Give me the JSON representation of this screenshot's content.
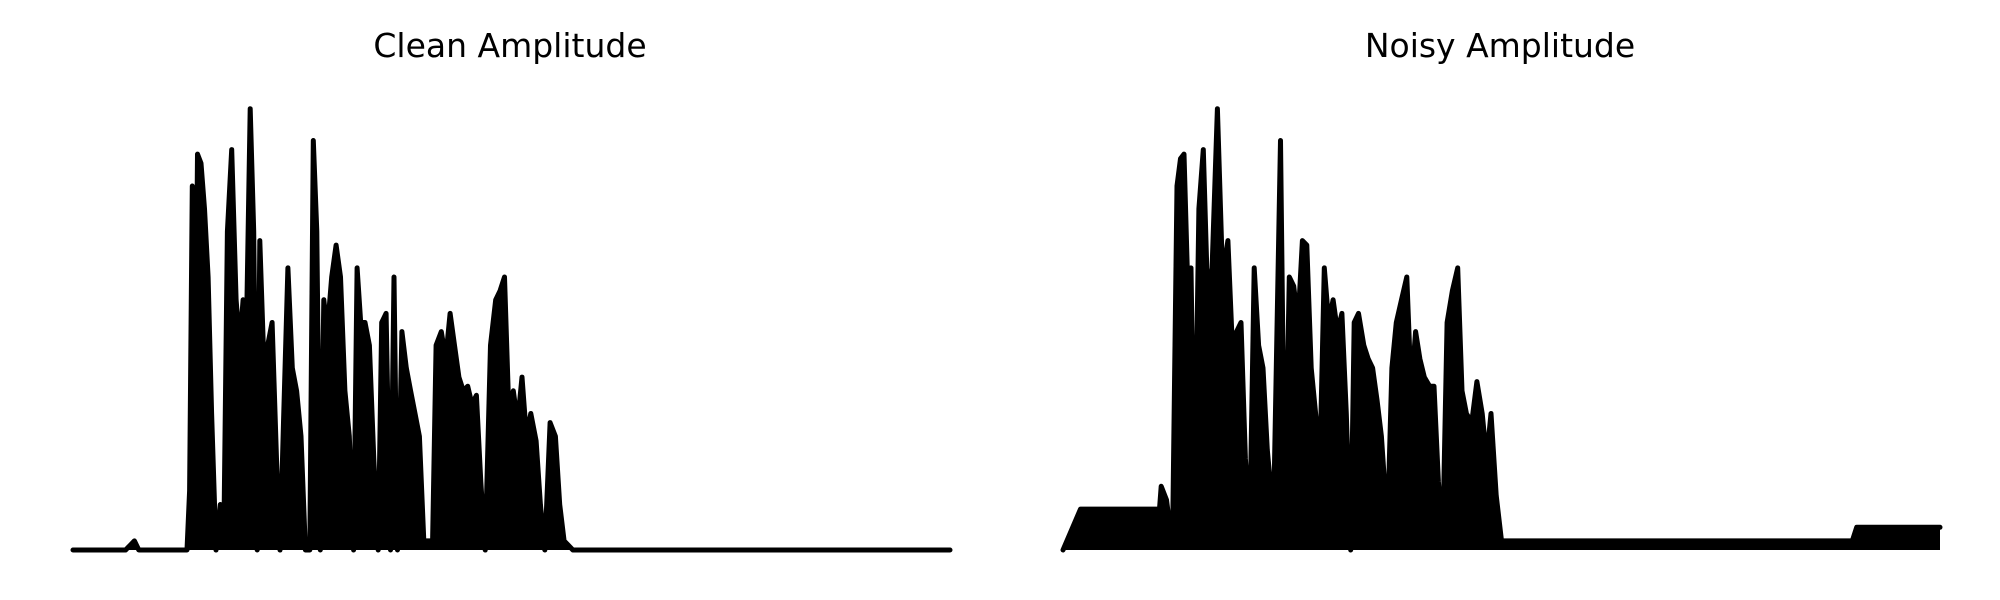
{
  "chart_data": [
    {
      "type": "line",
      "title": "Clean Amplitude",
      "axes_visible": false,
      "grid": false,
      "color": "#000000",
      "xlim": [
        0,
        1
      ],
      "ylim": [
        0,
        1
      ],
      "envelope": [
        [
          0.0,
          0.0
        ],
        [
          0.06,
          0.0
        ],
        [
          0.07,
          0.02
        ],
        [
          0.075,
          0.0
        ],
        [
          0.13,
          0.0
        ],
        [
          0.133,
          0.13
        ],
        [
          0.136,
          0.8
        ],
        [
          0.139,
          0.2
        ],
        [
          0.142,
          0.87
        ],
        [
          0.146,
          0.85
        ],
        [
          0.15,
          0.75
        ],
        [
          0.154,
          0.6
        ],
        [
          0.158,
          0.3
        ],
        [
          0.163,
          0.0
        ],
        [
          0.168,
          0.1
        ],
        [
          0.172,
          0.02
        ],
        [
          0.176,
          0.7
        ],
        [
          0.181,
          0.88
        ],
        [
          0.186,
          0.55
        ],
        [
          0.19,
          0.45
        ],
        [
          0.194,
          0.55
        ],
        [
          0.198,
          0.5
        ],
        [
          0.202,
          0.97
        ],
        [
          0.206,
          0.7
        ],
        [
          0.21,
          0.0
        ],
        [
          0.213,
          0.68
        ],
        [
          0.217,
          0.45
        ],
        [
          0.222,
          0.45
        ],
        [
          0.227,
          0.5
        ],
        [
          0.232,
          0.2
        ],
        [
          0.236,
          0.0
        ],
        [
          0.24,
          0.28
        ],
        [
          0.245,
          0.62
        ],
        [
          0.25,
          0.4
        ],
        [
          0.255,
          0.35
        ],
        [
          0.26,
          0.25
        ],
        [
          0.265,
          0.0
        ],
        [
          0.27,
          0.0
        ],
        [
          0.274,
          0.9
        ],
        [
          0.278,
          0.7
        ],
        [
          0.282,
          0.0
        ],
        [
          0.286,
          0.55
        ],
        [
          0.29,
          0.48
        ],
        [
          0.295,
          0.6
        ],
        [
          0.3,
          0.67
        ],
        [
          0.305,
          0.6
        ],
        [
          0.31,
          0.35
        ],
        [
          0.315,
          0.25
        ],
        [
          0.32,
          0.0
        ],
        [
          0.324,
          0.62
        ],
        [
          0.328,
          0.5
        ],
        [
          0.333,
          0.5
        ],
        [
          0.338,
          0.45
        ],
        [
          0.343,
          0.2
        ],
        [
          0.348,
          0.0
        ],
        [
          0.352,
          0.5
        ],
        [
          0.357,
          0.52
        ],
        [
          0.362,
          0.0
        ],
        [
          0.366,
          0.6
        ],
        [
          0.37,
          0.0
        ],
        [
          0.375,
          0.48
        ],
        [
          0.38,
          0.4
        ],
        [
          0.385,
          0.35
        ],
        [
          0.39,
          0.3
        ],
        [
          0.395,
          0.25
        ],
        [
          0.4,
          0.02
        ],
        [
          0.41,
          0.02
        ],
        [
          0.414,
          0.45
        ],
        [
          0.42,
          0.48
        ],
        [
          0.425,
          0.42
        ],
        [
          0.43,
          0.52
        ],
        [
          0.435,
          0.45
        ],
        [
          0.44,
          0.38
        ],
        [
          0.445,
          0.35
        ],
        [
          0.45,
          0.36
        ],
        [
          0.455,
          0.32
        ],
        [
          0.46,
          0.34
        ],
        [
          0.465,
          0.15
        ],
        [
          0.47,
          0.0
        ],
        [
          0.476,
          0.45
        ],
        [
          0.482,
          0.55
        ],
        [
          0.487,
          0.57
        ],
        [
          0.492,
          0.6
        ],
        [
          0.497,
          0.3
        ],
        [
          0.502,
          0.35
        ],
        [
          0.507,
          0.28
        ],
        [
          0.512,
          0.38
        ],
        [
          0.517,
          0.25
        ],
        [
          0.522,
          0.3
        ],
        [
          0.528,
          0.24
        ],
        [
          0.533,
          0.1
        ],
        [
          0.538,
          0.0
        ],
        [
          0.544,
          0.28
        ],
        [
          0.55,
          0.25
        ],
        [
          0.555,
          0.1
        ],
        [
          0.56,
          0.02
        ],
        [
          0.57,
          0.0
        ],
        [
          1.0,
          0.0
        ]
      ]
    },
    {
      "type": "line",
      "title": "Noisy Amplitude",
      "axes_visible": false,
      "grid": false,
      "color": "#000000",
      "xlim": [
        0,
        1
      ],
      "ylim": [
        0,
        1
      ],
      "envelope": [
        [
          0.0,
          0.0
        ],
        [
          0.02,
          0.09
        ],
        [
          0.06,
          0.09
        ],
        [
          0.11,
          0.09
        ],
        [
          0.112,
          0.14
        ],
        [
          0.118,
          0.11
        ],
        [
          0.122,
          0.05
        ],
        [
          0.125,
          0.03
        ],
        [
          0.13,
          0.8
        ],
        [
          0.134,
          0.86
        ],
        [
          0.138,
          0.87
        ],
        [
          0.142,
          0.6
        ],
        [
          0.146,
          0.62
        ],
        [
          0.15,
          0.1
        ],
        [
          0.155,
          0.75
        ],
        [
          0.16,
          0.88
        ],
        [
          0.165,
          0.55
        ],
        [
          0.17,
          0.62
        ],
        [
          0.176,
          0.97
        ],
        [
          0.182,
          0.6
        ],
        [
          0.188,
          0.68
        ],
        [
          0.193,
          0.45
        ],
        [
          0.198,
          0.48
        ],
        [
          0.203,
          0.5
        ],
        [
          0.208,
          0.2
        ],
        [
          0.213,
          0.05
        ],
        [
          0.218,
          0.62
        ],
        [
          0.223,
          0.45
        ],
        [
          0.228,
          0.4
        ],
        [
          0.233,
          0.22
        ],
        [
          0.24,
          0.07
        ],
        [
          0.248,
          0.9
        ],
        [
          0.253,
          0.07
        ],
        [
          0.258,
          0.6
        ],
        [
          0.263,
          0.58
        ],
        [
          0.268,
          0.5
        ],
        [
          0.273,
          0.68
        ],
        [
          0.278,
          0.67
        ],
        [
          0.283,
          0.4
        ],
        [
          0.288,
          0.3
        ],
        [
          0.293,
          0.2
        ],
        [
          0.298,
          0.62
        ],
        [
          0.303,
          0.5
        ],
        [
          0.308,
          0.55
        ],
        [
          0.313,
          0.48
        ],
        [
          0.318,
          0.52
        ],
        [
          0.323,
          0.3
        ],
        [
          0.328,
          0.0
        ],
        [
          0.332,
          0.5
        ],
        [
          0.337,
          0.52
        ],
        [
          0.343,
          0.45
        ],
        [
          0.348,
          0.42
        ],
        [
          0.353,
          0.4
        ],
        [
          0.358,
          0.33
        ],
        [
          0.363,
          0.25
        ],
        [
          0.37,
          0.05
        ],
        [
          0.375,
          0.4
        ],
        [
          0.38,
          0.5
        ],
        [
          0.386,
          0.55
        ],
        [
          0.392,
          0.6
        ],
        [
          0.397,
          0.35
        ],
        [
          0.402,
          0.48
        ],
        [
          0.407,
          0.42
        ],
        [
          0.412,
          0.38
        ],
        [
          0.418,
          0.36
        ],
        [
          0.423,
          0.36
        ],
        [
          0.428,
          0.15
        ],
        [
          0.433,
          0.02
        ],
        [
          0.438,
          0.5
        ],
        [
          0.444,
          0.57
        ],
        [
          0.45,
          0.62
        ],
        [
          0.455,
          0.35
        ],
        [
          0.46,
          0.3
        ],
        [
          0.466,
          0.28
        ],
        [
          0.472,
          0.37
        ],
        [
          0.478,
          0.3
        ],
        [
          0.483,
          0.2
        ],
        [
          0.488,
          0.3
        ],
        [
          0.494,
          0.12
        ],
        [
          0.5,
          0.02
        ],
        [
          0.51,
          0.02
        ],
        [
          0.52,
          0.02
        ],
        [
          0.9,
          0.02
        ],
        [
          0.905,
          0.05
        ],
        [
          1.0,
          0.05
        ]
      ]
    }
  ]
}
